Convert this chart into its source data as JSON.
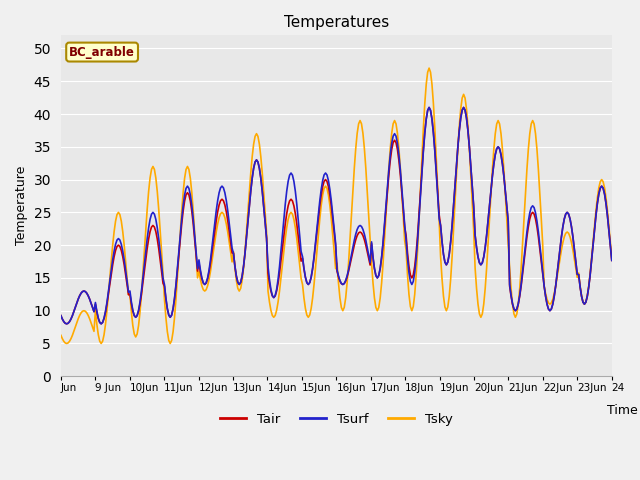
{
  "title": "Temperatures",
  "xlabel": "Time",
  "ylabel": "Temperature",
  "ylim": [
    0,
    52
  ],
  "yticks": [
    0,
    5,
    10,
    15,
    20,
    25,
    30,
    35,
    40,
    45,
    50
  ],
  "plot_bg": "#e8e8e8",
  "fig_bg": "#f0f0f0",
  "legend_label": "BC_arable",
  "legend_bg": "#ffffcc",
  "legend_edge": "#aa8800",
  "legend_text_color": "#800000",
  "line_colors": {
    "Tair": "#cc0000",
    "Tsurf": "#2222cc",
    "Tsky": "#ffaa00"
  },
  "line_width": 1.2,
  "xtick_labels": [
    "Jun",
    "9 Jun",
    "10Jun",
    "11Jun",
    "12Jun",
    "13Jun",
    "14Jun",
    "15Jun",
    "16Jun",
    "17Jun",
    "18Jun",
    "19Jun",
    "20Jun",
    "21Jun",
    "22Jun",
    "23Jun",
    "24"
  ],
  "figsize": [
    6.4,
    4.8
  ],
  "dpi": 100
}
